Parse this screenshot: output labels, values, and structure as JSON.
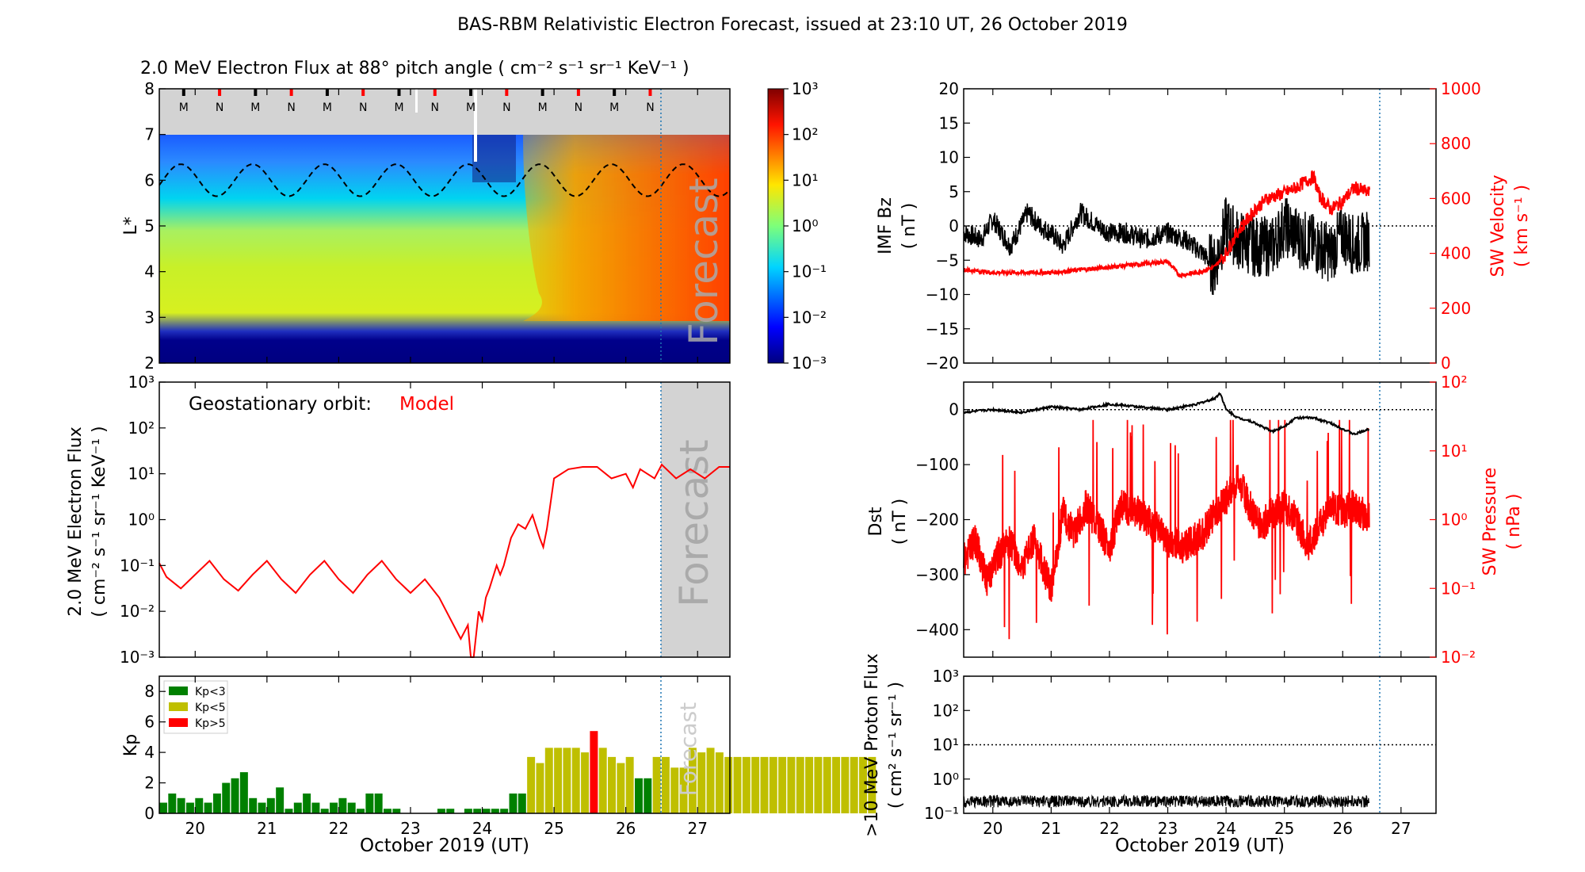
{
  "figure": {
    "title": "BAS-RBM Relativistic Electron Forecast, issued at 23:10 UT, 26 October 2019",
    "x_label": "October 2019 (UT)",
    "day_ticks": [
      "20",
      "21",
      "22",
      "23",
      "24",
      "25",
      "26",
      "27"
    ],
    "forecast_label": "Forecast",
    "colors": {
      "red": "#ff0000",
      "black": "#000000",
      "dark_blue": "#00008b",
      "green": "#008000",
      "olive": "#bfbf00",
      "grey_band": "#d3d3d3",
      "vline": "#1f77b4"
    }
  },
  "chart_data": [
    {
      "id": "lstar_spectrogram",
      "type": "heatmap",
      "title": "2.0 MeV Electron Flux at 88° pitch angle ( cm⁻² s⁻¹ sr⁻¹ KeV⁻¹ )",
      "ylabel": "L*",
      "ylim": [
        2,
        8
      ],
      "xlim_day": [
        19.5,
        27.45
      ],
      "yticks": [
        "2",
        "3",
        "4",
        "5",
        "6",
        "7",
        "8"
      ],
      "colorbar_ticks": [
        "10⁻³",
        "10⁻²",
        "10⁻¹",
        "10⁰",
        "10¹",
        "10²",
        "10³"
      ],
      "orbit_markers": [
        "M",
        "N",
        "M",
        "N",
        "M",
        "N",
        "M",
        "N",
        "M",
        "N",
        "M",
        "N",
        "M",
        "N"
      ],
      "forecast_start_day": 26.46
    },
    {
      "id": "geo_flux",
      "type": "line",
      "annotation": "Geostationary orbit:",
      "annotation_series": "Model",
      "ylabel_line1": "2.0 MeV Electron Flux",
      "ylabel_line2": "( cm⁻² s⁻¹ sr⁻¹ KeV⁻¹ )",
      "yscale": "log",
      "ylim_log": [
        -3,
        3
      ],
      "yticks": [
        "10⁻³",
        "10⁻²",
        "10⁻¹",
        "10⁰",
        "10¹",
        "10²",
        "10³"
      ],
      "x_day": [
        19.5,
        19.6,
        19.8,
        20.0,
        20.2,
        20.4,
        20.6,
        20.8,
        21.0,
        21.2,
        21.4,
        21.6,
        21.8,
        22.0,
        22.2,
        22.4,
        22.6,
        22.8,
        23.0,
        23.2,
        23.4,
        23.6,
        23.7,
        23.8,
        23.84,
        23.88,
        23.95,
        24.0,
        24.05,
        24.1,
        24.2,
        24.25,
        24.3,
        24.4,
        24.5,
        24.6,
        24.7,
        24.8,
        24.85,
        24.9,
        25.0,
        25.2,
        25.4,
        25.6,
        25.8,
        26.0,
        26.1,
        26.2,
        26.3,
        26.4,
        26.5,
        26.7,
        26.9,
        27.1,
        27.3,
        27.45
      ],
      "y_log": [
        -0.95,
        -1.25,
        -1.5,
        -1.2,
        -0.9,
        -1.3,
        -1.55,
        -1.2,
        -0.9,
        -1.3,
        -1.6,
        -1.2,
        -0.9,
        -1.3,
        -1.6,
        -1.2,
        -0.9,
        -1.3,
        -1.6,
        -1.3,
        -1.7,
        -2.3,
        -2.6,
        -2.3,
        -3.0,
        -3.0,
        -2.0,
        -2.2,
        -1.7,
        -1.5,
        -1.0,
        -1.2,
        -1.0,
        -0.4,
        -0.1,
        -0.2,
        0.1,
        -0.4,
        -0.6,
        -0.2,
        0.9,
        1.1,
        1.15,
        1.15,
        0.9,
        1.0,
        0.7,
        1.1,
        1.0,
        0.9,
        1.2,
        0.9,
        1.1,
        0.9,
        1.15,
        1.15
      ],
      "forecast_start_day": 26.46
    },
    {
      "id": "kp",
      "type": "bar",
      "ylabel": "Kp",
      "ylim": [
        0,
        9
      ],
      "yticks": [
        "0",
        "2",
        "4",
        "6",
        "8"
      ],
      "legend": [
        {
          "label": "Kp<3",
          "color": "#008000"
        },
        {
          "label": "Kp<5",
          "color": "#bfbf00"
        },
        {
          "label": "Kp>5",
          "color": "#ff0000"
        }
      ],
      "bar_width_day": 0.125,
      "start_day": 19.5,
      "values": [
        0.7,
        1.3,
        1.0,
        0.7,
        1.0,
        0.7,
        1.3,
        2.0,
        2.3,
        2.7,
        1.0,
        0.7,
        1.0,
        1.7,
        0.3,
        0.7,
        1.3,
        0.7,
        0.3,
        0.7,
        1.0,
        0.7,
        0.3,
        1.3,
        1.3,
        0.3,
        0.3,
        0,
        0,
        0,
        0,
        0.3,
        0.3,
        0,
        0.3,
        0.3,
        0.3,
        0.3,
        0.3,
        1.3,
        1.3,
        3.7,
        3.3,
        4.3,
        4.3,
        4.3,
        4.3,
        4.0,
        5.4,
        4.3,
        3.7,
        3.3,
        3.7,
        2.3,
        2.3,
        3.7,
        3.7,
        3.0,
        3.0,
        4.3,
        4.0,
        4.3,
        4.0,
        3.7,
        3.7,
        3.7,
        3.7,
        3.7,
        3.7,
        3.7,
        3.7,
        3.7,
        3.7,
        3.7,
        3.7,
        3.7,
        3.7,
        3.7,
        3.7,
        3.7
      ],
      "forecast_start_day": 26.46
    },
    {
      "id": "imf_bz_sw_velocity",
      "type": "line",
      "ylabel_line1": "IMF Bz",
      "ylabel_line2": "( nT )",
      "ylim": [
        -20,
        20
      ],
      "yticks": [
        "20",
        "15",
        "10",
        "5",
        "0",
        "−5",
        "−10",
        "−15",
        "−20"
      ],
      "y2label_line1": "SW Velocity",
      "y2label_line2": "( km s⁻¹ )",
      "y2lim": [
        0,
        1000
      ],
      "y2ticks": [
        "1000",
        "800",
        "600",
        "400",
        "200",
        "0"
      ],
      "bz": {
        "x_day": [
          19.5,
          19.8,
          20.0,
          20.3,
          20.6,
          20.8,
          21.0,
          21.2,
          21.5,
          21.8,
          22.0,
          22.3,
          22.6,
          23.0,
          23.3,
          23.6,
          23.8,
          24.0,
          24.2,
          24.5,
          24.8,
          25.0,
          25.3,
          25.6,
          25.8,
          26.0,
          26.2,
          26.46
        ],
        "values": [
          -1,
          -2,
          1,
          -3,
          2,
          0,
          -1,
          -3,
          2,
          0,
          -1,
          -1,
          -2,
          -1,
          -2,
          -4,
          -6,
          0,
          -2,
          -3,
          -3,
          0,
          -2,
          -3,
          -4,
          -1,
          -3,
          -2
        ]
      },
      "velocity": {
        "x_day": [
          19.5,
          20.0,
          20.5,
          21.0,
          21.5,
          22.0,
          22.5,
          23.0,
          23.2,
          23.5,
          23.8,
          24.0,
          24.2,
          24.5,
          24.7,
          25.0,
          25.2,
          25.5,
          25.6,
          25.8,
          26.0,
          26.2,
          26.46
        ],
        "values": [
          340,
          330,
          330,
          330,
          340,
          350,
          360,
          370,
          320,
          330,
          350,
          400,
          480,
          560,
          600,
          620,
          640,
          680,
          610,
          560,
          590,
          640,
          620
        ]
      },
      "forecast_start_day": 26.46
    },
    {
      "id": "dst_sw_pressure",
      "type": "line",
      "ylabel_line1": "Dst",
      "ylabel_line2": "( nT )",
      "ylim": [
        -450,
        50
      ],
      "yticks": [
        "0",
        "−100",
        "−200",
        "−300",
        "−400"
      ],
      "y2label_line1": "SW Pressure",
      "y2label_line2": "( nPa )",
      "y2scale": "log",
      "y2lim_log": [
        -2,
        2
      ],
      "y2ticks": [
        "10²",
        "10¹",
        "10⁰",
        "10⁻¹",
        "10⁻²"
      ],
      "dst": {
        "x_day": [
          19.5,
          20.0,
          20.5,
          21.0,
          21.5,
          22.0,
          22.5,
          23.0,
          23.5,
          23.8,
          23.9,
          24.0,
          24.2,
          24.4,
          24.6,
          24.8,
          25.0,
          25.2,
          25.5,
          25.8,
          26.0,
          26.2,
          26.46
        ],
        "values": [
          -5,
          0,
          -5,
          5,
          0,
          10,
          5,
          0,
          10,
          20,
          30,
          0,
          -15,
          -20,
          -30,
          -40,
          -30,
          -15,
          -15,
          -25,
          -35,
          -45,
          -35
        ]
      },
      "pressure": {
        "x_day": [
          19.5,
          19.7,
          19.9,
          20.1,
          20.3,
          20.5,
          20.7,
          21.0,
          21.2,
          21.4,
          21.6,
          21.8,
          22.0,
          22.2,
          22.5,
          22.8,
          23.0,
          23.3,
          23.6,
          23.8,
          24.0,
          24.2,
          24.4,
          24.6,
          24.8,
          25.0,
          25.2,
          25.4,
          25.6,
          25.8,
          26.0,
          26.2,
          26.46
        ],
        "log_values": [
          -0.6,
          -0.3,
          -0.9,
          -0.5,
          -0.3,
          -0.7,
          -0.3,
          -1.0,
          0.1,
          -0.2,
          0.2,
          -0.1,
          -0.4,
          0.2,
          0.1,
          -0.1,
          -0.3,
          -0.4,
          -0.2,
          0.1,
          0.3,
          0.6,
          0.2,
          -0.1,
          0.1,
          0.2,
          0.0,
          -0.4,
          -0.1,
          0.2,
          0.1,
          0.2,
          0.0
        ]
      },
      "forecast_start_day": 26.46
    },
    {
      "id": "proton_flux",
      "type": "line",
      "ylabel_line1": ">10 MeV Proton Flux",
      "ylabel_line2": "( cm² s⁻¹ sr⁻¹ )",
      "yscale": "log",
      "ylim_log": [
        -1,
        3
      ],
      "yticks": [
        "10³",
        "10²",
        "10¹",
        "10⁰",
        "10⁻¹"
      ],
      "threshold": 10,
      "background_log_value": -0.65,
      "forecast_start_day": 26.46
    }
  ]
}
